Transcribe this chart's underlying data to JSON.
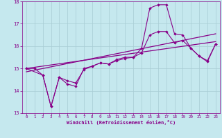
{
  "xlabel": "Windchill (Refroidissement éolien,°C)",
  "xlim": [
    -0.5,
    23.5
  ],
  "ylim": [
    13,
    18
  ],
  "yticks": [
    13,
    14,
    15,
    16,
    17,
    18
  ],
  "xticks": [
    0,
    1,
    2,
    3,
    4,
    5,
    6,
    7,
    8,
    9,
    10,
    11,
    12,
    13,
    14,
    15,
    16,
    17,
    18,
    19,
    20,
    21,
    22,
    23
  ],
  "bg_color": "#c5e8ee",
  "line_color": "#880088",
  "grid_color": "#a8ccd4",
  "line1_x": [
    0,
    1,
    2,
    3,
    4,
    5,
    6,
    7,
    8,
    9,
    10,
    11,
    12,
    13,
    14,
    15,
    16,
    17,
    18,
    19,
    20,
    21,
    22,
    23
  ],
  "line1_y": [
    15.0,
    15.0,
    14.7,
    13.3,
    14.6,
    14.3,
    14.2,
    15.0,
    15.1,
    15.25,
    15.2,
    15.4,
    15.5,
    15.5,
    15.9,
    17.7,
    17.85,
    17.85,
    16.55,
    16.5,
    15.9,
    15.55,
    15.35,
    16.1
  ],
  "line2_x": [
    0,
    2,
    3,
    4,
    5,
    6,
    7,
    8,
    9,
    10,
    11,
    12,
    13,
    14,
    15,
    16,
    17,
    18,
    19,
    20,
    21,
    22,
    23
  ],
  "line2_y": [
    15.0,
    14.7,
    13.3,
    14.6,
    14.45,
    14.35,
    14.95,
    15.1,
    15.25,
    15.2,
    15.35,
    15.45,
    15.5,
    15.7,
    16.5,
    16.65,
    16.65,
    16.15,
    16.25,
    15.9,
    15.55,
    15.3,
    16.1
  ],
  "line3": [
    [
      0,
      15.0
    ],
    [
      23,
      16.2
    ]
  ],
  "line4": [
    [
      0,
      14.85
    ],
    [
      23,
      16.55
    ]
  ]
}
